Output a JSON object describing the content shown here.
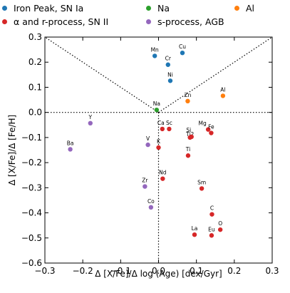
{
  "chart_data": {
    "type": "scatter",
    "xlabel": "Δ [X/Fe]/Δ log (Age) [dex/Gyr]",
    "ylabel": "Δ [X/Fe]/Δ [Fe/H]",
    "xlim": [
      -0.3,
      0.3
    ],
    "ylim": [
      -0.6,
      0.3
    ],
    "xticks": [
      "−0.3",
      "−0.2",
      "−0.1",
      "0.0",
      "0.1",
      "0.2",
      "0.3"
    ],
    "yticks": [
      "0.3",
      "0.2",
      "0.1",
      "0.0",
      "−0.1",
      "−0.2",
      "−0.3",
      "−0.4",
      "−0.5",
      "−0.6"
    ],
    "grid": false,
    "legend_position": "top, outside plot",
    "reference_lines": {
      "horizontal_y": 0,
      "vertical_x": 0,
      "diagonals": "y = |x|"
    },
    "series": [
      {
        "name": "Iron Peak, SN Ia",
        "color": "#1f77b4",
        "points": [
          {
            "label": "Mn",
            "x": -0.01,
            "y": 0.225
          },
          {
            "label": "Cr",
            "x": 0.025,
            "y": 0.19
          },
          {
            "label": "Cu",
            "x": 0.063,
            "y": 0.237
          },
          {
            "label": "Ni",
            "x": 0.031,
            "y": 0.126
          }
        ]
      },
      {
        "name": "Na",
        "color": "#2ca02c",
        "points": [
          {
            "label": "Na",
            "x": -0.005,
            "y": 0.01
          }
        ]
      },
      {
        "name": "Al",
        "color": "#ff7f0e",
        "points": [
          {
            "label": "Zn",
            "x": 0.077,
            "y": 0.045
          },
          {
            "label": "Al",
            "x": 0.17,
            "y": 0.066
          }
        ]
      },
      {
        "name": "α and r-process, SN II",
        "color": "#d62728",
        "points": [
          {
            "label": "Ca",
            "x": 0.01,
            "y": -0.066
          },
          {
            "label": "Sc",
            "x": 0.028,
            "y": -0.066
          },
          {
            "label": "Ti2",
            "x": 0.083,
            "y": -0.1
          },
          {
            "label": "Si",
            "x": 0.087,
            "y": -0.097
          },
          {
            "label": "Mg",
            "x": 0.131,
            "y": -0.068
          },
          {
            "label": "Fe",
            "x": 0.139,
            "y": -0.082
          },
          {
            "label": "K",
            "x": 0.0,
            "y": -0.14
          },
          {
            "label": "Ti",
            "x": 0.078,
            "y": -0.172
          },
          {
            "label": "Nd",
            "x": 0.011,
            "y": -0.264
          },
          {
            "label": "Sm",
            "x": 0.114,
            "y": -0.303
          },
          {
            "label": "C",
            "x": 0.141,
            "y": -0.406
          },
          {
            "label": "O",
            "x": 0.163,
            "y": -0.467
          },
          {
            "label": "La",
            "x": 0.095,
            "y": -0.487
          },
          {
            "label": "Eu",
            "x": 0.14,
            "y": -0.49
          }
        ]
      },
      {
        "name": "s-process, AGB",
        "color": "#9467bd",
        "points": [
          {
            "label": "Y",
            "x": -0.18,
            "y": -0.043
          },
          {
            "label": "Ba",
            "x": -0.233,
            "y": -0.147
          },
          {
            "label": "V",
            "x": -0.028,
            "y": -0.129
          },
          {
            "label": "Zr",
            "x": -0.036,
            "y": -0.295
          },
          {
            "label": "Co",
            "x": -0.02,
            "y": -0.378
          }
        ]
      }
    ]
  },
  "legend": {
    "order": [
      "Iron Peak, SN Ia",
      "Na",
      "Al",
      "α and r-process, SN II",
      "s-process, AGB"
    ]
  }
}
